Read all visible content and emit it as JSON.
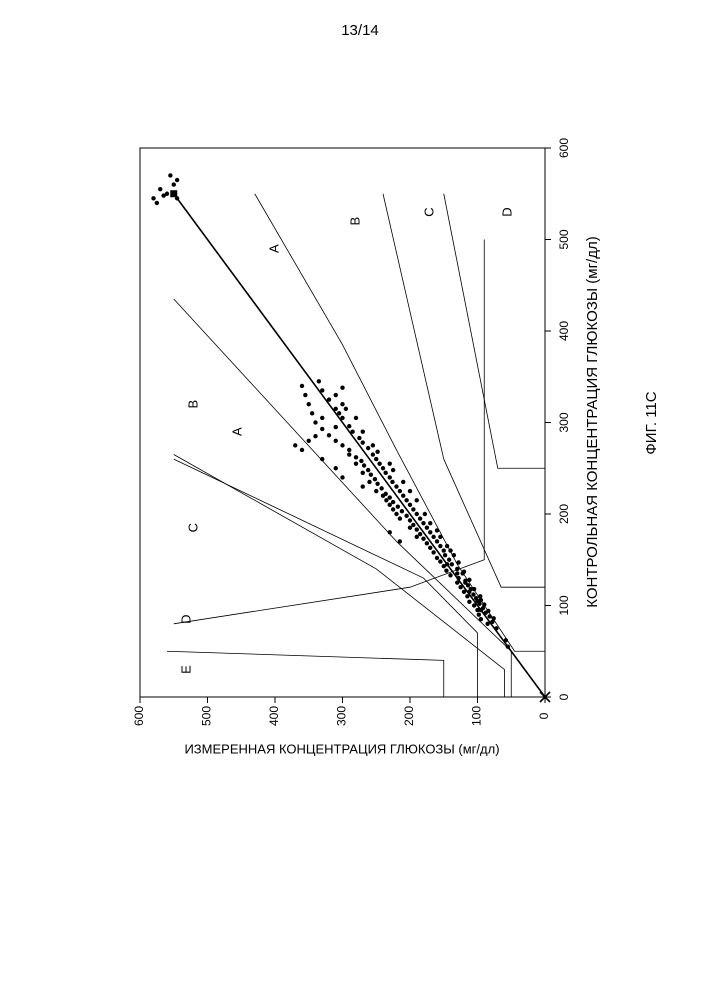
{
  "page": {
    "number": "13/14",
    "figure_caption": "ФИГ. 11С"
  },
  "chart_data": {
    "type": "scatter",
    "xlabel": "КОНТРОЛЬНАЯ КОНЦЕНТРАЦИЯ ГЛЮКОЗЫ (мг/дл)",
    "ylabel": "ИЗМЕРЕННАЯ КОНЦЕНТРАЦИЯ ГЛЮКОЗЫ (мг/дл)",
    "xlim": [
      0,
      600
    ],
    "ylim": [
      0,
      600
    ],
    "x_ticks": [
      0,
      100,
      200,
      300,
      400,
      500,
      600
    ],
    "y_ticks": [
      0,
      100,
      200,
      300,
      400,
      500,
      600
    ],
    "grid": false,
    "identity_line": {
      "from": [
        0,
        0
      ],
      "to": [
        550,
        550
      ]
    },
    "zone_lines": [
      {
        "side": "upper",
        "points": [
          [
            0,
            50
          ],
          [
            50,
            50
          ],
          [
            170,
            220
          ],
          [
            435,
            550
          ]
        ]
      },
      {
        "side": "upper",
        "points": [
          [
            0,
            60
          ],
          [
            30,
            60
          ],
          [
            140,
            250
          ],
          [
            265,
            550
          ]
        ]
      },
      {
        "side": "upper",
        "points": [
          [
            0,
            100
          ],
          [
            70,
            100
          ],
          [
            130,
            180
          ],
          [
            260,
            550
          ]
        ]
      },
      {
        "side": "upper",
        "points": [
          [
            0,
            150
          ],
          [
            40,
            150
          ],
          [
            50,
            560
          ]
        ]
      },
      {
        "side": "upper",
        "points": [
          [
            80,
            550
          ],
          [
            120,
            200
          ],
          [
            150,
            90
          ],
          [
            500,
            90
          ]
        ]
      },
      {
        "side": "lower",
        "points": [
          [
            50,
            0
          ],
          [
            50,
            45
          ],
          [
            145,
            130
          ],
          [
            270,
            220
          ],
          [
            385,
            300
          ],
          [
            550,
            430
          ]
        ]
      },
      {
        "side": "lower",
        "points": [
          [
            120,
            0
          ],
          [
            120,
            65
          ],
          [
            260,
            150
          ],
          [
            550,
            240
          ]
        ]
      },
      {
        "side": "lower",
        "points": [
          [
            250,
            0
          ],
          [
            250,
            70
          ],
          [
            550,
            150
          ]
        ]
      }
    ],
    "zone_labels": [
      {
        "text": "A",
        "x": 290,
        "y": 455
      },
      {
        "text": "A",
        "x": 490,
        "y": 400
      },
      {
        "text": "B",
        "x": 320,
        "y": 520
      },
      {
        "text": "B",
        "x": 520,
        "y": 280
      },
      {
        "text": "C",
        "x": 185,
        "y": 520
      },
      {
        "text": "C",
        "x": 530,
        "y": 170
      },
      {
        "text": "D",
        "x": 85,
        "y": 530
      },
      {
        "text": "D",
        "x": 530,
        "y": 55
      },
      {
        "text": "E",
        "x": 30,
        "y": 530
      }
    ],
    "points": [
      [
        55,
        55
      ],
      [
        62,
        58
      ],
      [
        75,
        72
      ],
      [
        80,
        85
      ],
      [
        82,
        78
      ],
      [
        85,
        95
      ],
      [
        88,
        82
      ],
      [
        90,
        98
      ],
      [
        92,
        88
      ],
      [
        95,
        100
      ],
      [
        97,
        92
      ],
      [
        100,
        105
      ],
      [
        102,
        97
      ],
      [
        104,
        112
      ],
      [
        106,
        95
      ],
      [
        108,
        102
      ],
      [
        110,
        115
      ],
      [
        112,
        106
      ],
      [
        115,
        120
      ],
      [
        118,
        110
      ],
      [
        120,
        125
      ],
      [
        122,
        114
      ],
      [
        125,
        130
      ],
      [
        127,
        118
      ],
      [
        130,
        128
      ],
      [
        133,
        140
      ],
      [
        135,
        122
      ],
      [
        138,
        146
      ],
      [
        140,
        130
      ],
      [
        143,
        150
      ],
      [
        145,
        138
      ],
      [
        148,
        155
      ],
      [
        150,
        142
      ],
      [
        152,
        160
      ],
      [
        155,
        148
      ],
      [
        158,
        165
      ],
      [
        160,
        150
      ],
      [
        163,
        170
      ],
      [
        165,
        155
      ],
      [
        168,
        175
      ],
      [
        170,
        160
      ],
      [
        173,
        180
      ],
      [
        175,
        165
      ],
      [
        178,
        185
      ],
      [
        180,
        170
      ],
      [
        183,
        190
      ],
      [
        185,
        175
      ],
      [
        188,
        195
      ],
      [
        190,
        180
      ],
      [
        193,
        200
      ],
      [
        195,
        185
      ],
      [
        198,
        205
      ],
      [
        200,
        190
      ],
      [
        203,
        212
      ],
      [
        205,
        195
      ],
      [
        208,
        218
      ],
      [
        210,
        200
      ],
      [
        213,
        225
      ],
      [
        215,
        205
      ],
      [
        218,
        230
      ],
      [
        220,
        210
      ],
      [
        222,
        236
      ],
      [
        225,
        215
      ],
      [
        228,
        242
      ],
      [
        230,
        220
      ],
      [
        233,
        248
      ],
      [
        235,
        226
      ],
      [
        238,
        252
      ],
      [
        240,
        230
      ],
      [
        243,
        258
      ],
      [
        245,
        236
      ],
      [
        248,
        262
      ],
      [
        250,
        240
      ],
      [
        253,
        268
      ],
      [
        255,
        245
      ],
      [
        258,
        272
      ],
      [
        260,
        250
      ],
      [
        262,
        280
      ],
      [
        265,
        255
      ],
      [
        270,
        290
      ],
      [
        272,
        262
      ],
      [
        275,
        300
      ],
      [
        278,
        270
      ],
      [
        280,
        310
      ],
      [
        283,
        275
      ],
      [
        286,
        320
      ],
      [
        290,
        285
      ],
      [
        293,
        330
      ],
      [
        296,
        290
      ],
      [
        300,
        340
      ],
      [
        305,
        300
      ],
      [
        310,
        345
      ],
      [
        315,
        310
      ],
      [
        320,
        350
      ],
      [
        325,
        320
      ],
      [
        330,
        355
      ],
      [
        335,
        330
      ],
      [
        340,
        360
      ],
      [
        345,
        335
      ],
      [
        315,
        295
      ],
      [
        305,
        280
      ],
      [
        290,
        270
      ],
      [
        275,
        255
      ],
      [
        268,
        248
      ],
      [
        255,
        230
      ],
      [
        248,
        225
      ],
      [
        235,
        210
      ],
      [
        225,
        200
      ],
      [
        215,
        190
      ],
      [
        200,
        178
      ],
      [
        190,
        170
      ],
      [
        182,
        160
      ],
      [
        175,
        155
      ],
      [
        165,
        145
      ],
      [
        155,
        135
      ],
      [
        147,
        128
      ],
      [
        137,
        120
      ],
      [
        128,
        112
      ],
      [
        118,
        105
      ],
      [
        110,
        96
      ],
      [
        101,
        90
      ],
      [
        94,
        84
      ],
      [
        86,
        76
      ],
      [
        180,
        230
      ],
      [
        170,
        215
      ],
      [
        230,
        270
      ],
      [
        240,
        300
      ],
      [
        250,
        310
      ],
      [
        260,
        330
      ],
      [
        270,
        360
      ],
      [
        275,
        370
      ],
      [
        280,
        350
      ],
      [
        285,
        340
      ],
      [
        295,
        310
      ],
      [
        305,
        330
      ],
      [
        310,
        305
      ],
      [
        320,
        300
      ],
      [
        330,
        310
      ],
      [
        338,
        300
      ],
      [
        160,
        140
      ],
      [
        145,
        145
      ],
      [
        135,
        130
      ],
      [
        125,
        118
      ],
      [
        115,
        112
      ],
      [
        105,
        100
      ],
      [
        95,
        95
      ],
      [
        200,
        220
      ],
      [
        210,
        230
      ],
      [
        220,
        240
      ],
      [
        185,
        200
      ],
      [
        175,
        190
      ],
      [
        195,
        215
      ],
      [
        205,
        225
      ],
      [
        215,
        235
      ],
      [
        225,
        250
      ],
      [
        235,
        260
      ],
      [
        245,
        270
      ],
      [
        255,
        280
      ],
      [
        265,
        290
      ],
      [
        560,
        550
      ],
      [
        565,
        545
      ],
      [
        570,
        555
      ],
      [
        545,
        580
      ],
      [
        548,
        565
      ],
      [
        550,
        560
      ],
      [
        555,
        570
      ],
      [
        540,
        575
      ],
      [
        545,
        545
      ],
      [
        550,
        550
      ]
    ],
    "square_marker": {
      "x": 550,
      "y": 550
    },
    "origin_marker": {
      "x": 0,
      "y": 0
    }
  }
}
